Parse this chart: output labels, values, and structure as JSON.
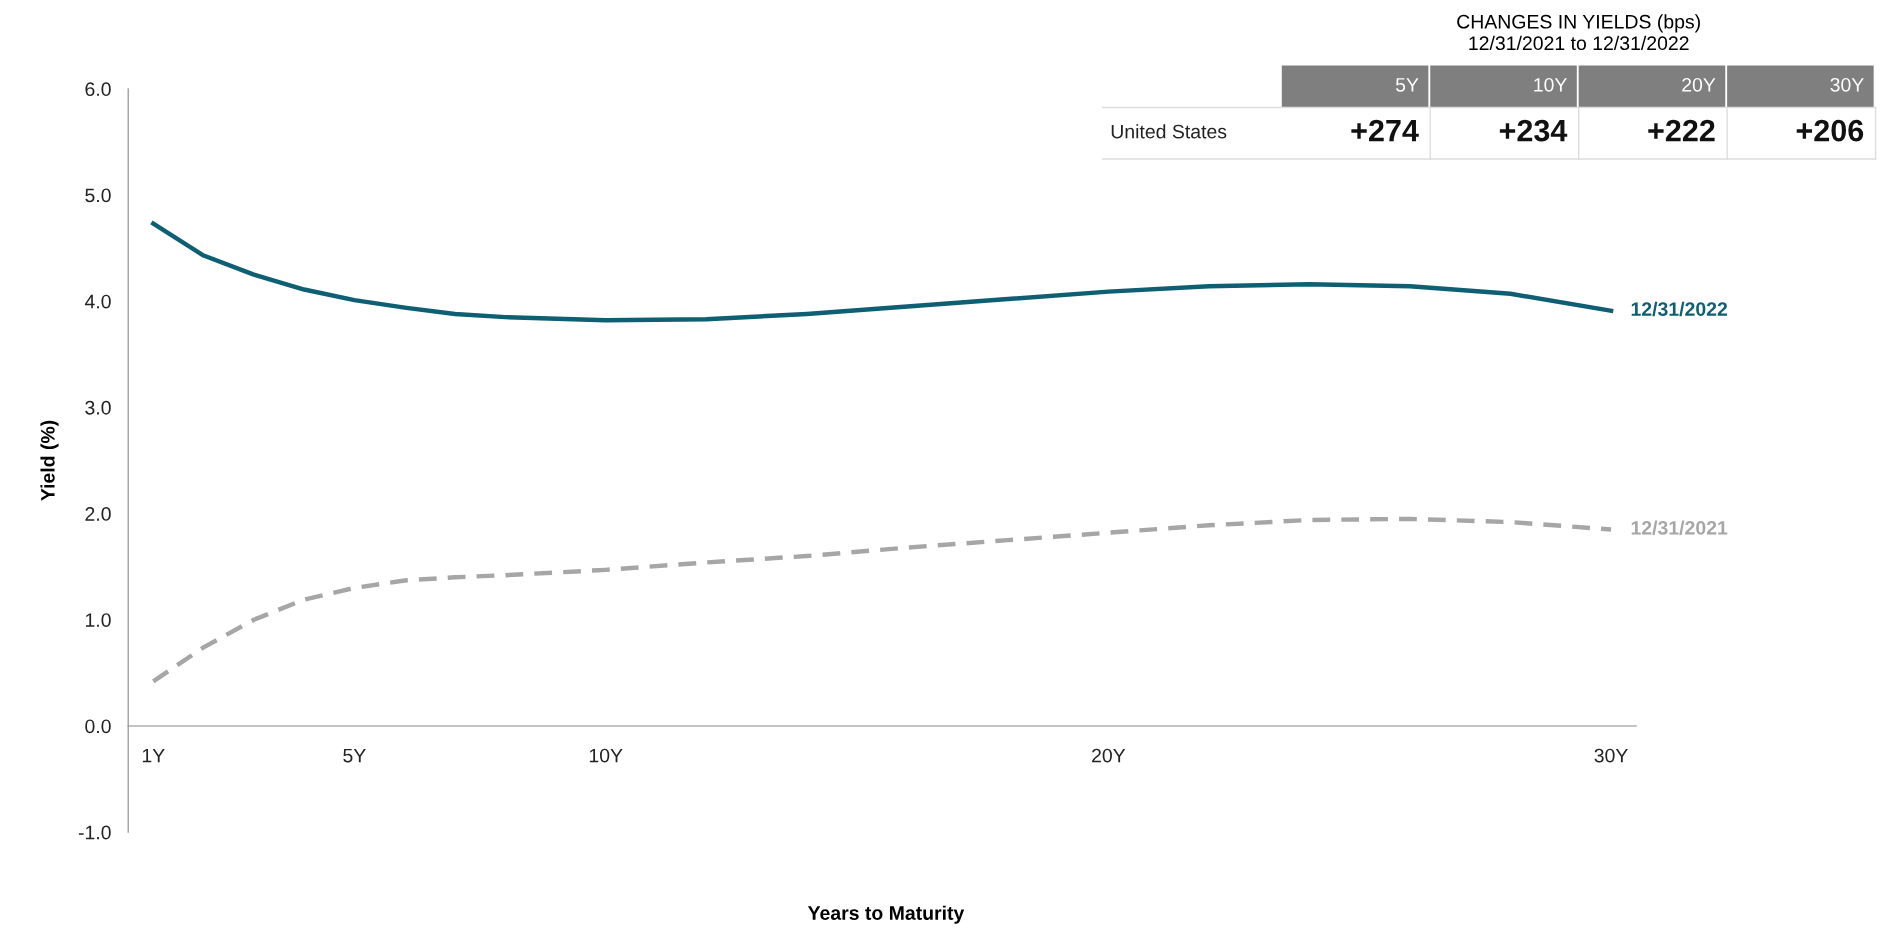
{
  "chart_data": {
    "type": "line",
    "xlabel": "Years to Maturity",
    "ylabel": "Yield (%)",
    "xlim": [
      0.5,
      30.5
    ],
    "ylim": [
      -1,
      6
    ],
    "xticks": [
      {
        "value": 1,
        "label": "1Y"
      },
      {
        "value": 5,
        "label": "5Y"
      },
      {
        "value": 10,
        "label": "10Y"
      },
      {
        "value": 20,
        "label": "20Y"
      },
      {
        "value": 30,
        "label": "30Y"
      }
    ],
    "yticks": [
      {
        "value": -1,
        "label": "-1.0"
      },
      {
        "value": 0,
        "label": "0.0"
      },
      {
        "value": 1,
        "label": "1.0"
      },
      {
        "value": 2,
        "label": "2.0"
      },
      {
        "value": 3,
        "label": "3.0"
      },
      {
        "value": 4,
        "label": "4.0"
      },
      {
        "value": 5,
        "label": "5.0"
      },
      {
        "value": 6,
        "label": "6.0"
      }
    ],
    "x": [
      1,
      2,
      3,
      4,
      5,
      6,
      7,
      8,
      10,
      12,
      14,
      16,
      18,
      20,
      22,
      24,
      26,
      28,
      30
    ],
    "series": [
      {
        "name": "12/31/2022",
        "color": "#0e5f73",
        "line_style": "solid",
        "values": [
          4.73,
          4.43,
          4.25,
          4.11,
          4.01,
          3.94,
          3.88,
          3.85,
          3.82,
          3.83,
          3.88,
          3.95,
          4.02,
          4.09,
          4.14,
          4.16,
          4.14,
          4.07,
          3.91
        ]
      },
      {
        "name": "12/31/2021",
        "color": "#a6a6a6",
        "line_style": "dashed",
        "values": [
          0.42,
          0.74,
          1.0,
          1.19,
          1.3,
          1.37,
          1.4,
          1.42,
          1.47,
          1.54,
          1.6,
          1.68,
          1.75,
          1.82,
          1.89,
          1.94,
          1.95,
          1.92,
          1.85
        ]
      }
    ],
    "annotations": [
      "CHANGES IN YIELDS (bps)",
      "12/31/2021 to 12/31/2022",
      "5Y",
      "10Y",
      "20Y",
      "30Y",
      "United States",
      "+274",
      "+234",
      "+222",
      "+206"
    ],
    "legend": false,
    "grid": false,
    "marker": "none"
  }
}
